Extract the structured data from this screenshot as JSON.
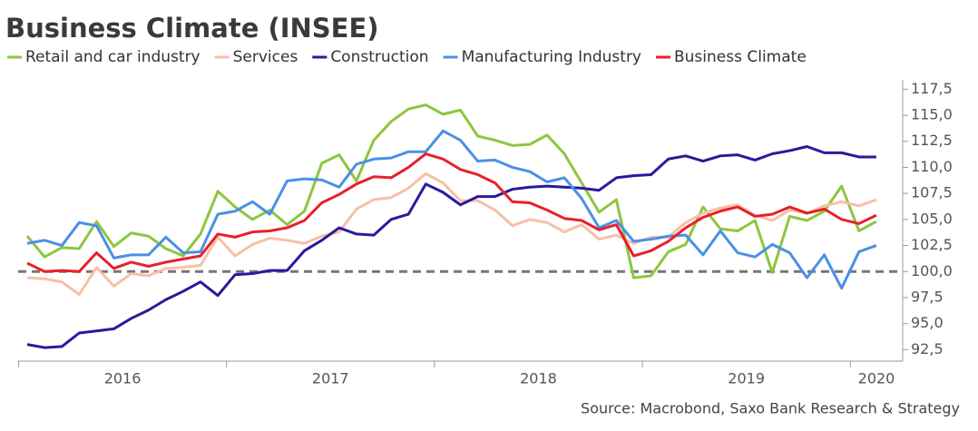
{
  "chart_data": {
    "type": "line",
    "title": "Business Climate (INSEE)",
    "source": "Source: Macrobond, Saxo Bank Research & Strategy",
    "x_labels": [
      "2016",
      "2017",
      "2018",
      "2019",
      "2020"
    ],
    "ylim": [
      91.4,
      118.4
    ],
    "yticks": [
      {
        "value": 92.5,
        "label": "92,5"
      },
      {
        "value": 95,
        "label": "95,0"
      },
      {
        "value": 97.5,
        "label": "97,5"
      },
      {
        "value": 100,
        "label": "100,0"
      },
      {
        "value": 102.5,
        "label": "102,5"
      },
      {
        "value": 105,
        "label": "105,0"
      },
      {
        "value": 107.5,
        "label": "107,5"
      },
      {
        "value": 110,
        "label": "110,0"
      },
      {
        "value": 112.5,
        "label": "112,5"
      },
      {
        "value": 115,
        "label": "115,0"
      },
      {
        "value": 117.5,
        "label": "117,5"
      }
    ],
    "reference_line": 100,
    "series": [
      {
        "name": "Retail and car industry",
        "color": "#8dc63f",
        "values": [
          103.4,
          101.4,
          102.3,
          102.2,
          104.8,
          102.4,
          103.7,
          103.4,
          102.2,
          101.5,
          103.6,
          107.7,
          106.2,
          105.0,
          105.9,
          104.5,
          105.8,
          110.4,
          111.2,
          108.7,
          112.6,
          114.4,
          115.6,
          116.0,
          115.1,
          115.5,
          113.0,
          112.6,
          112.1,
          112.2,
          113.1,
          111.3,
          108.5,
          105.7,
          106.9,
          99.4,
          99.6,
          101.9,
          102.6,
          106.2,
          104.1,
          103.9,
          104.9,
          99.9,
          105.3,
          104.9,
          105.8,
          108.2,
          103.9,
          104.8
        ]
      },
      {
        "name": "Services",
        "color": "#f7bfa8",
        "values": [
          99.4,
          99.3,
          99.0,
          97.8,
          100.4,
          98.6,
          99.8,
          99.6,
          100.3,
          100.4,
          100.6,
          103.3,
          101.5,
          102.6,
          103.2,
          103.0,
          102.7,
          103.4,
          103.8,
          106.0,
          106.9,
          107.1,
          108.0,
          109.4,
          108.5,
          106.8,
          106.8,
          105.9,
          104.4,
          105.0,
          104.7,
          103.8,
          104.5,
          103.1,
          103.5,
          102.7,
          103.3,
          103.3,
          104.7,
          105.6,
          106.1,
          106.4,
          105.4,
          104.9,
          105.9,
          105.6,
          106.3,
          106.7,
          106.3,
          106.9
        ]
      },
      {
        "name": "Construction",
        "color": "#2a1a9a",
        "values": [
          93.0,
          92.7,
          92.8,
          94.1,
          94.3,
          94.5,
          95.5,
          96.3,
          97.3,
          98.1,
          99.0,
          97.7,
          99.7,
          99.8,
          100.1,
          100.1,
          102.0,
          103.0,
          104.2,
          103.6,
          103.5,
          105.0,
          105.5,
          108.4,
          107.6,
          106.4,
          107.2,
          107.2,
          107.9,
          108.1,
          108.2,
          108.1,
          108.0,
          107.8,
          109.0,
          109.2,
          109.3,
          110.8,
          111.1,
          110.6,
          111.1,
          111.2,
          110.7,
          111.3,
          111.6,
          112.0,
          111.4,
          111.4,
          111.0,
          111.0
        ]
      },
      {
        "name": "Manufacturing Industry",
        "color": "#4a90e8",
        "values": [
          102.7,
          103.0,
          102.5,
          104.7,
          104.4,
          101.3,
          101.6,
          101.6,
          103.3,
          101.8,
          101.9,
          105.5,
          105.8,
          106.7,
          105.5,
          108.7,
          108.9,
          108.8,
          108.1,
          110.3,
          110.8,
          110.9,
          111.5,
          111.5,
          113.5,
          112.6,
          110.6,
          110.7,
          110.0,
          109.6,
          108.6,
          109.0,
          107.0,
          104.2,
          104.9,
          102.9,
          103.1,
          103.4,
          103.5,
          101.6,
          103.9,
          101.8,
          101.4,
          102.6,
          101.8,
          99.4,
          101.6,
          98.4,
          101.9,
          102.5
        ]
      },
      {
        "name": "Business Climate",
        "color": "#e8202a",
        "values": [
          100.8,
          100.0,
          100.1,
          100.0,
          101.8,
          100.3,
          100.9,
          100.5,
          100.9,
          101.2,
          101.5,
          103.6,
          103.3,
          103.8,
          103.9,
          104.2,
          104.9,
          106.6,
          107.4,
          108.4,
          109.1,
          109.0,
          110.0,
          111.3,
          110.8,
          109.8,
          109.3,
          108.5,
          106.7,
          106.6,
          105.9,
          105.1,
          104.9,
          104.0,
          104.5,
          101.5,
          102.0,
          102.9,
          104.2,
          105.2,
          105.8,
          106.2,
          105.3,
          105.5,
          106.2,
          105.6,
          106.0,
          105.0,
          104.6,
          105.4
        ]
      }
    ]
  }
}
